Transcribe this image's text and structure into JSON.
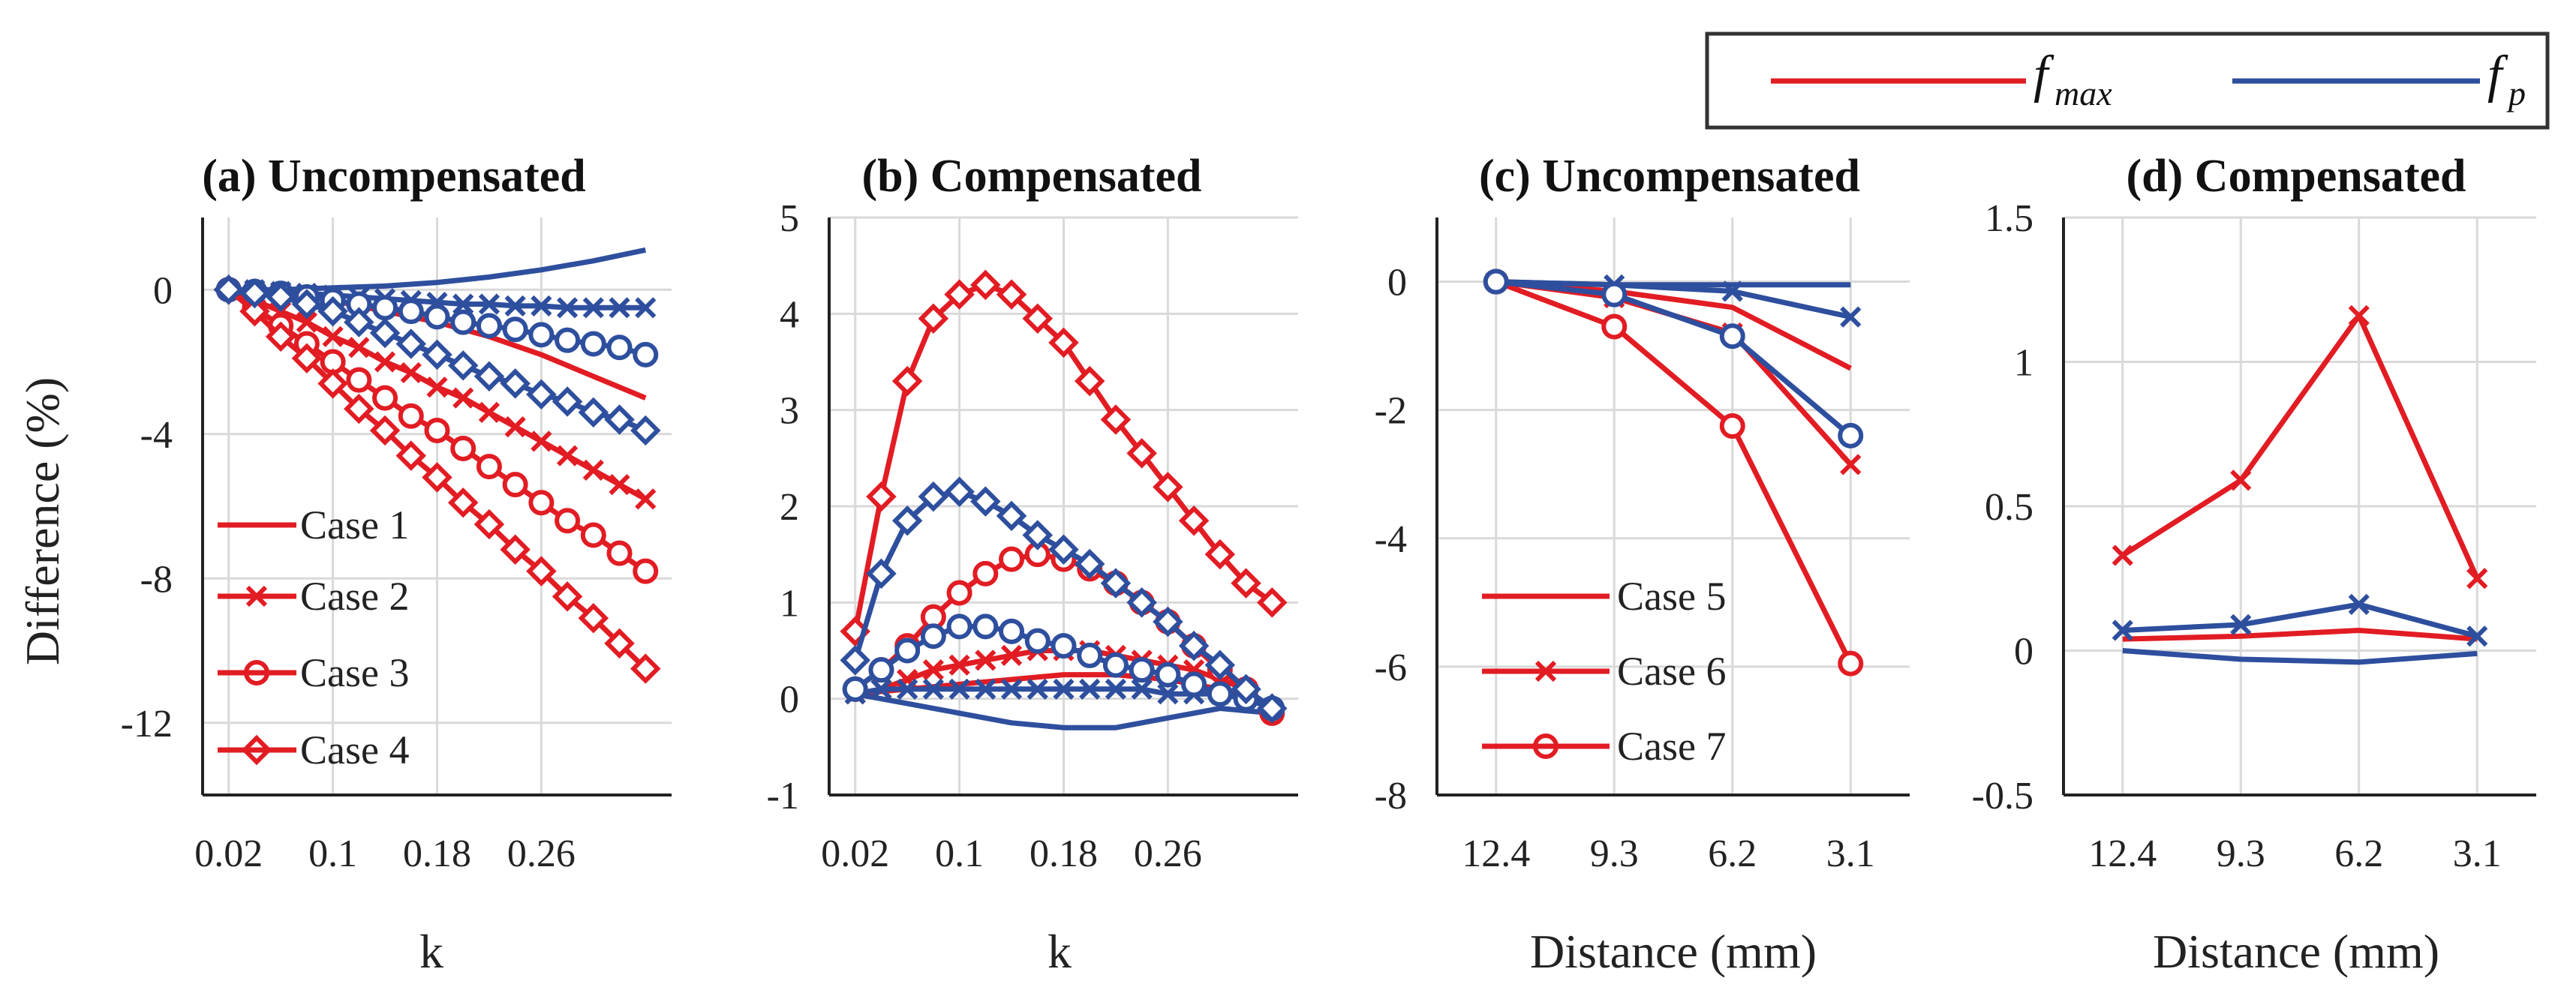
{
  "colors": {
    "red": "#e21c23",
    "blue": "#2e4f9e",
    "grid": "#d9d9d9",
    "axis": "#222222"
  },
  "global_legend": [
    {
      "symbol": "f",
      "sub": "max",
      "color": "red"
    },
    {
      "symbol": "f",
      "sub": "p",
      "color": "blue"
    }
  ],
  "chart_data": [
    {
      "type": "line",
      "title": "(a) Uncompensated",
      "xlabel": "k",
      "ylabel": "Difference (%)",
      "xlim": [
        0.0,
        0.36
      ],
      "ylim": [
        -14,
        2
      ],
      "xticks": [
        0.02,
        0.1,
        0.18,
        0.26
      ],
      "xticklabels": [
        "0.02",
        "0.1",
        "0.18",
        "0.26"
      ],
      "yticks": [
        0,
        -4,
        -8,
        -12
      ],
      "yticklabels": [
        "0",
        "-4",
        "-8",
        "-12"
      ],
      "legend": [
        "Case 1",
        "Case 2",
        "Case 3",
        "Case 4"
      ],
      "series": [
        {
          "name": "Case 1 fmax",
          "color": "red",
          "marker": "none",
          "x": [
            0.02,
            0.06,
            0.1,
            0.14,
            0.18,
            0.22,
            0.26,
            0.3,
            0.34
          ],
          "y": [
            0,
            -0.1,
            -0.3,
            -0.6,
            -0.9,
            -1.3,
            -1.8,
            -2.4,
            -3.0
          ]
        },
        {
          "name": "Case 1 fp",
          "color": "blue",
          "marker": "none",
          "x": [
            0.02,
            0.06,
            0.1,
            0.14,
            0.18,
            0.22,
            0.26,
            0.3,
            0.34
          ],
          "y": [
            0,
            0,
            0.05,
            0.1,
            0.2,
            0.35,
            0.55,
            0.8,
            1.1
          ]
        },
        {
          "name": "Case 2 fmax",
          "color": "red",
          "marker": "x",
          "x": [
            0.02,
            0.04,
            0.06,
            0.08,
            0.1,
            0.12,
            0.14,
            0.16,
            0.18,
            0.2,
            0.22,
            0.24,
            0.26,
            0.28,
            0.3,
            0.32,
            0.34
          ],
          "y": [
            0,
            -0.3,
            -0.6,
            -0.9,
            -1.3,
            -1.6,
            -2.0,
            -2.3,
            -2.7,
            -3.0,
            -3.4,
            -3.8,
            -4.2,
            -4.6,
            -5.0,
            -5.4,
            -5.8
          ]
        },
        {
          "name": "Case 2 fp",
          "color": "blue",
          "marker": "x",
          "x": [
            0.02,
            0.04,
            0.06,
            0.08,
            0.1,
            0.12,
            0.14,
            0.16,
            0.18,
            0.2,
            0.22,
            0.24,
            0.26,
            0.28,
            0.3,
            0.32,
            0.34
          ],
          "y": [
            0,
            0,
            -0.05,
            -0.1,
            -0.15,
            -0.2,
            -0.25,
            -0.3,
            -0.35,
            -0.4,
            -0.4,
            -0.45,
            -0.45,
            -0.5,
            -0.5,
            -0.5,
            -0.5
          ]
        },
        {
          "name": "Case 3 fmax",
          "color": "red",
          "marker": "o",
          "x": [
            0.02,
            0.04,
            0.06,
            0.08,
            0.1,
            0.12,
            0.14,
            0.16,
            0.18,
            0.2,
            0.22,
            0.24,
            0.26,
            0.28,
            0.3,
            0.32,
            0.34
          ],
          "y": [
            0,
            -0.5,
            -1.0,
            -1.5,
            -2.0,
            -2.5,
            -3.0,
            -3.5,
            -3.9,
            -4.4,
            -4.9,
            -5.4,
            -5.9,
            -6.4,
            -6.8,
            -7.3,
            -7.8
          ]
        },
        {
          "name": "Case 3 fp",
          "color": "blue",
          "marker": "o",
          "x": [
            0.02,
            0.04,
            0.06,
            0.08,
            0.1,
            0.12,
            0.14,
            0.16,
            0.18,
            0.2,
            0.22,
            0.24,
            0.26,
            0.28,
            0.3,
            0.32,
            0.34
          ],
          "y": [
            0,
            -0.05,
            -0.1,
            -0.2,
            -0.3,
            -0.4,
            -0.5,
            -0.6,
            -0.75,
            -0.9,
            -1.0,
            -1.1,
            -1.25,
            -1.4,
            -1.5,
            -1.6,
            -1.8
          ]
        },
        {
          "name": "Case 4 fmax",
          "color": "red",
          "marker": "diamond",
          "x": [
            0.02,
            0.04,
            0.06,
            0.08,
            0.1,
            0.12,
            0.14,
            0.16,
            0.18,
            0.2,
            0.22,
            0.24,
            0.26,
            0.28,
            0.3,
            0.32,
            0.34
          ],
          "y": [
            0,
            -0.6,
            -1.3,
            -1.9,
            -2.6,
            -3.3,
            -3.9,
            -4.6,
            -5.2,
            -5.9,
            -6.5,
            -7.2,
            -7.8,
            -8.5,
            -9.1,
            -9.8,
            -10.5
          ]
        },
        {
          "name": "Case 4 fp",
          "color": "blue",
          "marker": "diamond",
          "x": [
            0.02,
            0.04,
            0.06,
            0.08,
            0.1,
            0.12,
            0.14,
            0.16,
            0.18,
            0.2,
            0.22,
            0.24,
            0.26,
            0.28,
            0.3,
            0.32,
            0.34
          ],
          "y": [
            0,
            -0.1,
            -0.2,
            -0.4,
            -0.6,
            -0.9,
            -1.2,
            -1.5,
            -1.8,
            -2.1,
            -2.4,
            -2.6,
            -2.9,
            -3.1,
            -3.4,
            -3.6,
            -3.9
          ]
        }
      ]
    },
    {
      "type": "line",
      "title": "(b) Compensated",
      "xlabel": "k",
      "ylabel": "",
      "xlim": [
        0.0,
        0.36
      ],
      "ylim": [
        -1,
        5
      ],
      "xticks": [
        0.02,
        0.1,
        0.18,
        0.26
      ],
      "xticklabels": [
        "0.02",
        "0.1",
        "0.18",
        "0.26"
      ],
      "yticks": [
        5,
        4,
        3,
        2,
        1,
        0,
        -1
      ],
      "yticklabels": [
        "5",
        "4",
        "3",
        "2",
        "1",
        "0",
        "-1"
      ],
      "series": [
        {
          "name": "Case 1 fmax",
          "color": "red",
          "marker": "none",
          "x": [
            0.02,
            0.06,
            0.1,
            0.14,
            0.18,
            0.22,
            0.26,
            0.3,
            0.34
          ],
          "y": [
            0.05,
            0.1,
            0.15,
            0.2,
            0.25,
            0.25,
            0.2,
            0.1,
            -0.1
          ]
        },
        {
          "name": "Case 1 fp",
          "color": "blue",
          "marker": "none",
          "x": [
            0.02,
            0.06,
            0.1,
            0.14,
            0.18,
            0.22,
            0.26,
            0.3,
            0.34
          ],
          "y": [
            0.05,
            -0.05,
            -0.15,
            -0.25,
            -0.3,
            -0.3,
            -0.2,
            -0.1,
            -0.15
          ]
        },
        {
          "name": "Case 2 fmax",
          "color": "red",
          "marker": "x",
          "x": [
            0.02,
            0.04,
            0.06,
            0.08,
            0.1,
            0.12,
            0.14,
            0.16,
            0.18,
            0.2,
            0.22,
            0.24,
            0.26,
            0.28,
            0.3,
            0.32,
            0.34
          ],
          "y": [
            0.05,
            0.1,
            0.2,
            0.3,
            0.35,
            0.4,
            0.45,
            0.5,
            0.5,
            0.5,
            0.45,
            0.4,
            0.35,
            0.3,
            0.2,
            0.1,
            -0.1
          ]
        },
        {
          "name": "Case 2 fp",
          "color": "blue",
          "marker": "x",
          "x": [
            0.02,
            0.04,
            0.06,
            0.08,
            0.1,
            0.12,
            0.14,
            0.16,
            0.18,
            0.2,
            0.22,
            0.24,
            0.26,
            0.28,
            0.3,
            0.32,
            0.34
          ],
          "y": [
            0.05,
            0.1,
            0.1,
            0.1,
            0.1,
            0.1,
            0.1,
            0.1,
            0.1,
            0.1,
            0.1,
            0.1,
            0.05,
            0.05,
            0.05,
            0.05,
            -0.1
          ]
        },
        {
          "name": "Case 3 fmax",
          "color": "red",
          "marker": "o",
          "x": [
            0.02,
            0.04,
            0.06,
            0.08,
            0.1,
            0.12,
            0.14,
            0.16,
            0.18,
            0.2,
            0.22,
            0.24,
            0.26,
            0.28,
            0.3,
            0.32,
            0.34
          ],
          "y": [
            0.1,
            0.3,
            0.55,
            0.85,
            1.1,
            1.3,
            1.45,
            1.5,
            1.45,
            1.35,
            1.2,
            1.0,
            0.8,
            0.55,
            0.3,
            0.1,
            -0.15
          ]
        },
        {
          "name": "Case 3 fp",
          "color": "blue",
          "marker": "o",
          "x": [
            0.02,
            0.04,
            0.06,
            0.08,
            0.1,
            0.12,
            0.14,
            0.16,
            0.18,
            0.2,
            0.22,
            0.24,
            0.26,
            0.28,
            0.3,
            0.32,
            0.34
          ],
          "y": [
            0.1,
            0.3,
            0.5,
            0.65,
            0.75,
            0.75,
            0.7,
            0.6,
            0.55,
            0.45,
            0.35,
            0.3,
            0.25,
            0.15,
            0.05,
            0.0,
            -0.1
          ]
        },
        {
          "name": "Case 4 fmax",
          "color": "red",
          "marker": "diamond",
          "x": [
            0.02,
            0.04,
            0.06,
            0.08,
            0.1,
            0.12,
            0.14,
            0.16,
            0.18,
            0.2,
            0.22,
            0.24,
            0.26,
            0.28,
            0.3,
            0.32,
            0.34
          ],
          "y": [
            0.7,
            2.1,
            3.3,
            3.95,
            4.2,
            4.3,
            4.2,
            3.95,
            3.7,
            3.3,
            2.9,
            2.55,
            2.2,
            1.85,
            1.5,
            1.2,
            1.0
          ]
        },
        {
          "name": "Case 4 fp",
          "color": "blue",
          "marker": "diamond",
          "x": [
            0.02,
            0.04,
            0.06,
            0.08,
            0.1,
            0.12,
            0.14,
            0.16,
            0.18,
            0.2,
            0.22,
            0.24,
            0.26,
            0.28,
            0.3,
            0.32,
            0.34
          ],
          "y": [
            0.4,
            1.3,
            1.85,
            2.1,
            2.15,
            2.05,
            1.9,
            1.7,
            1.55,
            1.4,
            1.2,
            1.0,
            0.8,
            0.55,
            0.35,
            0.1,
            -0.1
          ]
        }
      ]
    },
    {
      "type": "line",
      "title": "(c) Uncompensated",
      "xlabel": "Distance (mm)",
      "ylabel": "",
      "xlim": [
        -0.5,
        3.5
      ],
      "ylim": [
        -8,
        1
      ],
      "xticks": [
        0,
        1,
        2,
        3
      ],
      "xticklabels": [
        "12.4",
        "9.3",
        "6.2",
        "3.1"
      ],
      "yticks": [
        0,
        -2,
        -4,
        -6,
        -8
      ],
      "yticklabels": [
        "0",
        "-2",
        "-4",
        "-6",
        "-8"
      ],
      "legend": [
        "Case 5",
        "Case 6",
        "Case 7"
      ],
      "series": [
        {
          "name": "Case 5 fmax",
          "color": "red",
          "marker": "none",
          "x": [
            0,
            1,
            2,
            3
          ],
          "y": [
            0,
            -0.15,
            -0.4,
            -1.35
          ]
        },
        {
          "name": "Case 5 fp",
          "color": "blue",
          "marker": "none",
          "x": [
            0,
            1,
            2,
            3
          ],
          "y": [
            0,
            -0.05,
            -0.05,
            -0.05
          ]
        },
        {
          "name": "Case 6 fmax",
          "color": "red",
          "marker": "x",
          "x": [
            0,
            1,
            2,
            3
          ],
          "y": [
            0,
            -0.25,
            -0.8,
            -2.85
          ]
        },
        {
          "name": "Case 6 fp",
          "color": "blue",
          "marker": "x",
          "x": [
            0,
            1,
            2,
            3
          ],
          "y": [
            0,
            -0.05,
            -0.15,
            -0.55
          ]
        },
        {
          "name": "Case 7 fmax",
          "color": "red",
          "marker": "o",
          "x": [
            0,
            1,
            2,
            3
          ],
          "y": [
            0,
            -0.7,
            -2.25,
            -5.95
          ]
        },
        {
          "name": "Case 7 fp",
          "color": "blue",
          "marker": "o",
          "x": [
            0,
            1,
            2,
            3
          ],
          "y": [
            0,
            -0.2,
            -0.85,
            -2.4
          ]
        }
      ]
    },
    {
      "type": "line",
      "title": "(d) Compensated",
      "xlabel": "Distance (mm)",
      "ylabel": "",
      "xlim": [
        -0.5,
        3.5
      ],
      "ylim": [
        -0.5,
        1.5
      ],
      "xticks": [
        0,
        1,
        2,
        3
      ],
      "xticklabels": [
        "12.4",
        "9.3",
        "6.2",
        "3.1"
      ],
      "yticks": [
        1.5,
        1,
        0.5,
        0,
        -0.5
      ],
      "yticklabels": [
        "1.5",
        "1",
        "0.5",
        "0",
        "-0.5"
      ],
      "series": [
        {
          "name": "Case 5 fmax",
          "color": "red",
          "marker": "none",
          "x": [
            0,
            1,
            2,
            3
          ],
          "y": [
            0.04,
            0.05,
            0.07,
            0.04
          ]
        },
        {
          "name": "Case 5 fp",
          "color": "blue",
          "marker": "none",
          "x": [
            0,
            1,
            2,
            3
          ],
          "y": [
            0.0,
            -0.03,
            -0.04,
            -0.01
          ]
        },
        {
          "name": "Case 6 fmax",
          "color": "red",
          "marker": "x",
          "x": [
            0,
            1,
            2,
            3
          ],
          "y": [
            0.33,
            0.59,
            1.16,
            0.25
          ]
        },
        {
          "name": "Case 6 fp",
          "color": "blue",
          "marker": "x",
          "x": [
            0,
            1,
            2,
            3
          ],
          "y": [
            0.07,
            0.09,
            0.16,
            0.05
          ]
        }
      ]
    }
  ]
}
